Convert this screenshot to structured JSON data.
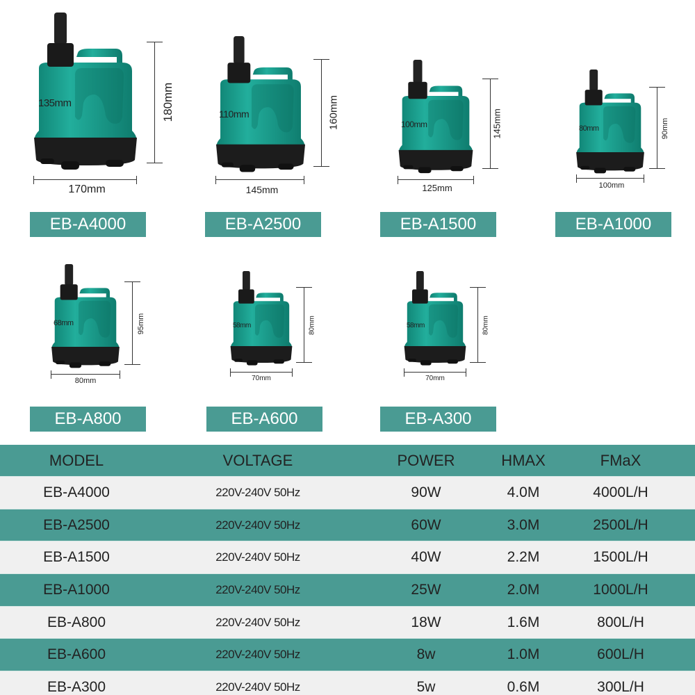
{
  "colors": {
    "accent": "#4a9b93",
    "row_light": "#f0f0f0",
    "pump_body": "#1a9c8c",
    "pump_base": "#1c1c1c"
  },
  "products": [
    {
      "model": "EB-A4000",
      "height": "180mm",
      "width": "170mm",
      "depth": "135mm"
    },
    {
      "model": "EB-A2500",
      "height": "160mm",
      "width": "145mm",
      "depth": "110mm"
    },
    {
      "model": "EB-A1500",
      "height": "145mm",
      "width": "125mm",
      "depth": "100mm"
    },
    {
      "model": "EB-A1000",
      "height": "90mm",
      "width": "100mm",
      "depth": "80mm"
    },
    {
      "model": "EB-A800",
      "height": "95mm",
      "width": "80mm",
      "depth": "68mm"
    },
    {
      "model": "EB-A600",
      "height": "80mm",
      "width": "70mm",
      "depth": "58mm"
    },
    {
      "model": "EB-A300",
      "height": "80mm",
      "width": "70mm",
      "depth": "58mm"
    }
  ],
  "table": {
    "headers": [
      "MODEL",
      "VOLTAGE",
      "POWER",
      "HMAX",
      "FMaX"
    ],
    "rows": [
      [
        "EB-A4000",
        "220V-240V 50Hz",
        "90W",
        "4.0M",
        "4000L/H"
      ],
      [
        "EB-A2500",
        "220V-240V 50Hz",
        "60W",
        "3.0M",
        "2500L/H"
      ],
      [
        "EB-A1500",
        "220V-240V 50Hz",
        "40W",
        "2.2M",
        "1500L/H"
      ],
      [
        "EB-A1000",
        "220V-240V 50Hz",
        "25W",
        "2.0M",
        "1000L/H"
      ],
      [
        "EB-A800",
        "220V-240V 50Hz",
        "18W",
        "1.6M",
        "800L/H"
      ],
      [
        "EB-A600",
        "220V-240V 50Hz",
        "8w",
        "1.0M",
        "600L/H"
      ],
      [
        "EB-A300",
        "220V-240V 50Hz",
        "5w",
        "0.6M",
        "300L/H"
      ]
    ]
  }
}
